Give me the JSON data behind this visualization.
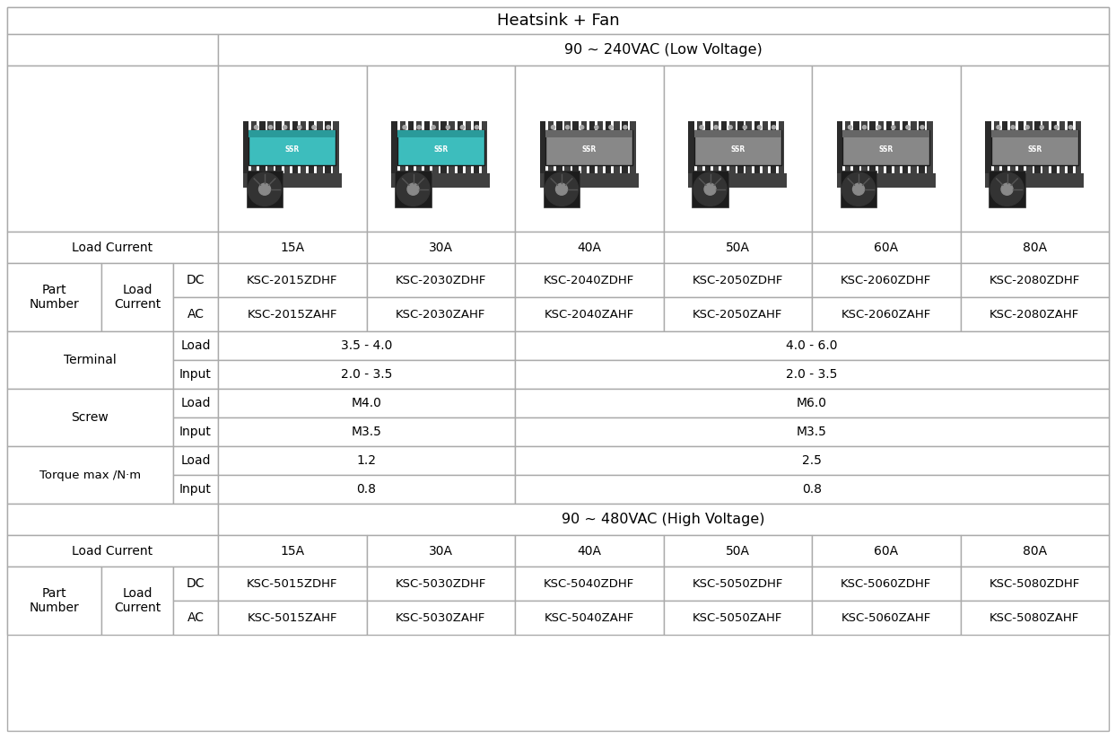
{
  "title": "Heatsink + Fan",
  "low_voltage_header": "90 ~ 240VAC (Low Voltage)",
  "high_voltage_header": "90 ~ 480VAC (High Voltage)",
  "load_currents": [
    "15A",
    "30A",
    "40A",
    "50A",
    "60A",
    "80A"
  ],
  "low_voltage": {
    "dc_parts": [
      "KSC-2015ZDHF",
      "KSC-2030ZDHF",
      "KSC-2040ZDHF",
      "KSC-2050ZDHF",
      "KSC-2060ZDHF",
      "KSC-2080ZDHF"
    ],
    "ac_parts": [
      "KSC-2015ZAHF",
      "KSC-2030ZAHF",
      "KSC-2040ZAHF",
      "KSC-2050ZAHF",
      "KSC-2060ZAHF",
      "KSC-2080ZAHF"
    ]
  },
  "high_voltage": {
    "dc_parts": [
      "KSC-5015ZDHF",
      "KSC-5030ZDHF",
      "KSC-5040ZDHF",
      "KSC-5050ZDHF",
      "KSC-5060ZDHF",
      "KSC-5080ZDHF"
    ],
    "ac_parts": [
      "KSC-5015ZAHF",
      "KSC-5030ZAHF",
      "KSC-5040ZAHF",
      "KSC-5050ZAHF",
      "KSC-5060ZAHF",
      "KSC-5080ZAHF"
    ]
  },
  "terminal": {
    "load_small": "3.5 - 4.0",
    "load_large": "4.0 - 6.0",
    "input_small": "2.0 - 3.5",
    "input_large": "2.0 - 3.5"
  },
  "screw": {
    "load_small": "M4.0",
    "load_large": "M6.0",
    "input_small": "M3.5",
    "input_large": "M3.5"
  },
  "torque": {
    "load_small": "1.2",
    "load_large": "2.5",
    "input_small": "0.8",
    "input_large": "0.8"
  },
  "bg_color": "#ffffff",
  "border_color": "#cccccc",
  "text_color": "#000000",
  "font_size": 10,
  "title_font_size": 13
}
